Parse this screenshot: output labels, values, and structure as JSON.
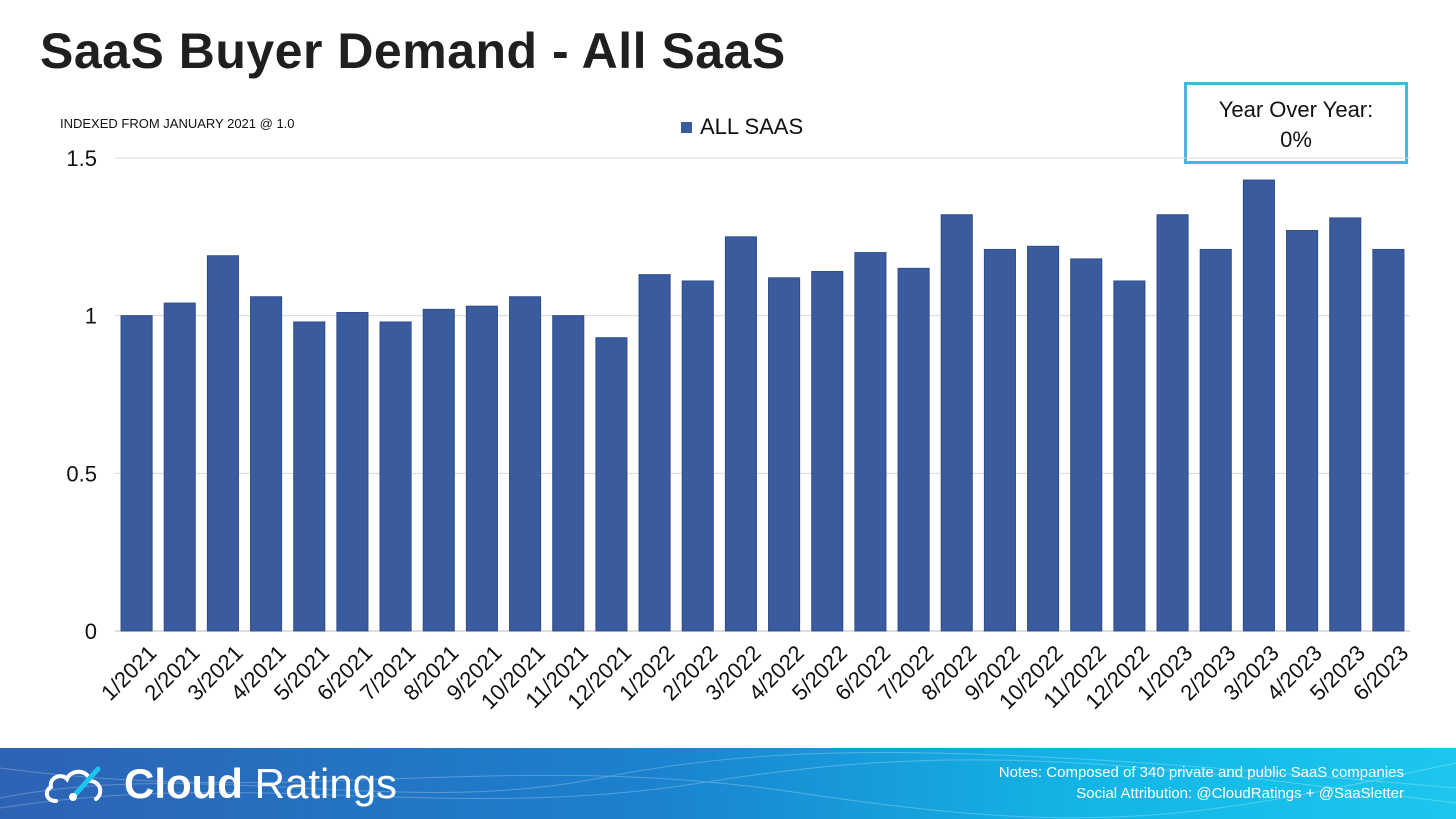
{
  "title": "SaaS Buyer Demand - All SaaS",
  "subtitle": "INDEXED FROM JANUARY 2021 @ 1.0",
  "yoy": {
    "label": "Year Over Year:",
    "value": "0%"
  },
  "footer": {
    "brand_bold": "Cloud",
    "brand_light": "Ratings",
    "notes": "Notes: Composed of 340 private and public SaaS companies",
    "attribution": "Social Attribution: @CloudRatings + @SaaSletter"
  },
  "colors": {
    "bar": "#3a5b9e",
    "accent": "#4db3e0"
  },
  "chart_data": {
    "type": "bar",
    "categories": [
      "1/2021",
      "2/2021",
      "3/2021",
      "4/2021",
      "5/2021",
      "6/2021",
      "7/2021",
      "8/2021",
      "9/2021",
      "10/2021",
      "11/2021",
      "12/2021",
      "1/2022",
      "2/2022",
      "3/2022",
      "4/2022",
      "5/2022",
      "6/2022",
      "7/2022",
      "8/2022",
      "9/2022",
      "10/2022",
      "11/2022",
      "12/2022",
      "1/2023",
      "2/2023",
      "3/2023",
      "4/2023",
      "5/2023",
      "6/2023"
    ],
    "series": [
      {
        "name": "ALL SAAS",
        "values": [
          1.0,
          1.04,
          1.19,
          1.06,
          0.98,
          1.01,
          0.98,
          1.02,
          1.03,
          1.06,
          1.0,
          0.93,
          1.13,
          1.11,
          1.25,
          1.12,
          1.14,
          1.2,
          1.15,
          1.32,
          1.21,
          1.22,
          1.18,
          1.11,
          1.32,
          1.21,
          1.43,
          1.27,
          1.31,
          1.21
        ]
      }
    ],
    "ylim": [
      0,
      1.5
    ],
    "yticks": [
      "0",
      "0.5",
      "1",
      "1.5"
    ],
    "grid": true,
    "legend": "top-center"
  }
}
